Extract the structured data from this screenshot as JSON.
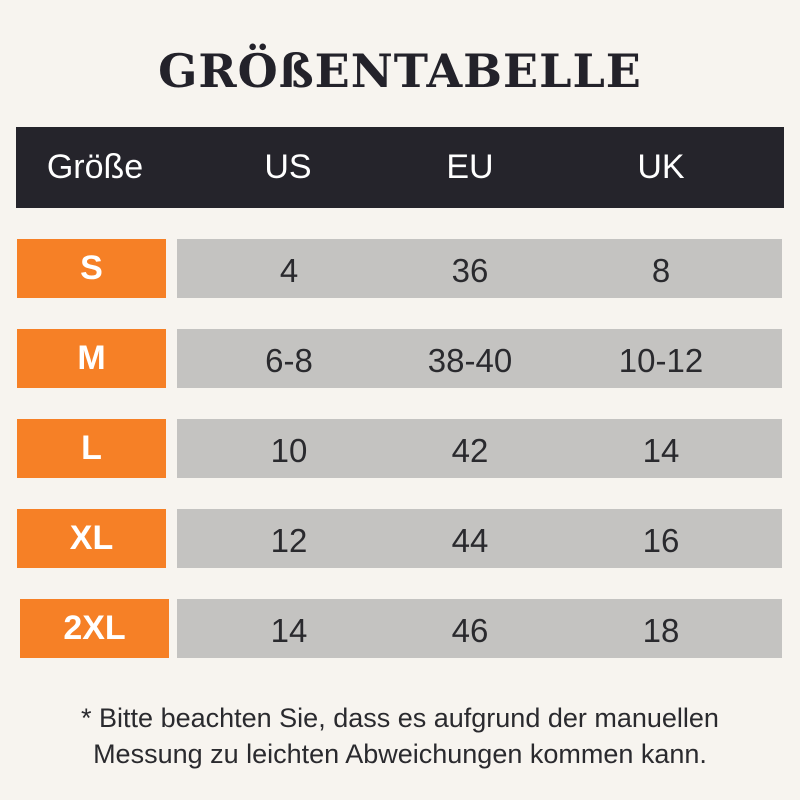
{
  "title": "GRÖßENTABELLE",
  "columns": [
    "Größe",
    "US",
    "EU",
    "UK"
  ],
  "rows": [
    {
      "size": "S",
      "us": "4",
      "eu": "36",
      "uk": "8"
    },
    {
      "size": "M",
      "us": "6-8",
      "eu": "38-40",
      "uk": "10-12"
    },
    {
      "size": "L",
      "us": "10",
      "eu": "42",
      "uk": "14"
    },
    {
      "size": "XL",
      "us": "12",
      "eu": "44",
      "uk": "16"
    },
    {
      "size": "2XL",
      "us": "14",
      "eu": "46",
      "uk": "18"
    }
  ],
  "note": [
    "* Bitte beachten Sie, dass es aufgrund der manuellen",
    "Messung zu leichten Abweichungen kommen kann."
  ],
  "colors": {
    "header": "#25242b",
    "size_label": "#f68026",
    "cell": "#c4c3c1",
    "background": "#f7f4ef"
  }
}
